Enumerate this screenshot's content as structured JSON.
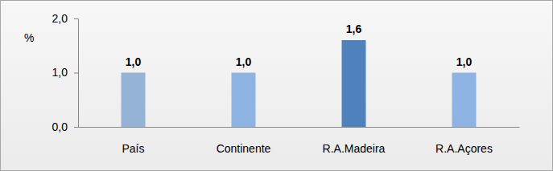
{
  "chart_data": {
    "type": "bar",
    "y_label": "%",
    "categories": [
      "País",
      "Continente",
      "R.A.Madeira",
      "R.A.Açores"
    ],
    "values": [
      1.0,
      1.0,
      1.6,
      1.0
    ],
    "value_labels": [
      "1,0",
      "1,0",
      "1,6",
      "1,0"
    ],
    "data_labels": true,
    "colors": [
      "#95b3d7",
      "#8db4e2",
      "#4f81bd",
      "#8db4e2"
    ],
    "ylim": [
      0,
      2
    ],
    "yticks": [
      {
        "value": 0,
        "label": "0,0"
      },
      {
        "value": 1,
        "label": "1,0"
      },
      {
        "value": 2,
        "label": "2,0"
      }
    ],
    "grid": false
  }
}
